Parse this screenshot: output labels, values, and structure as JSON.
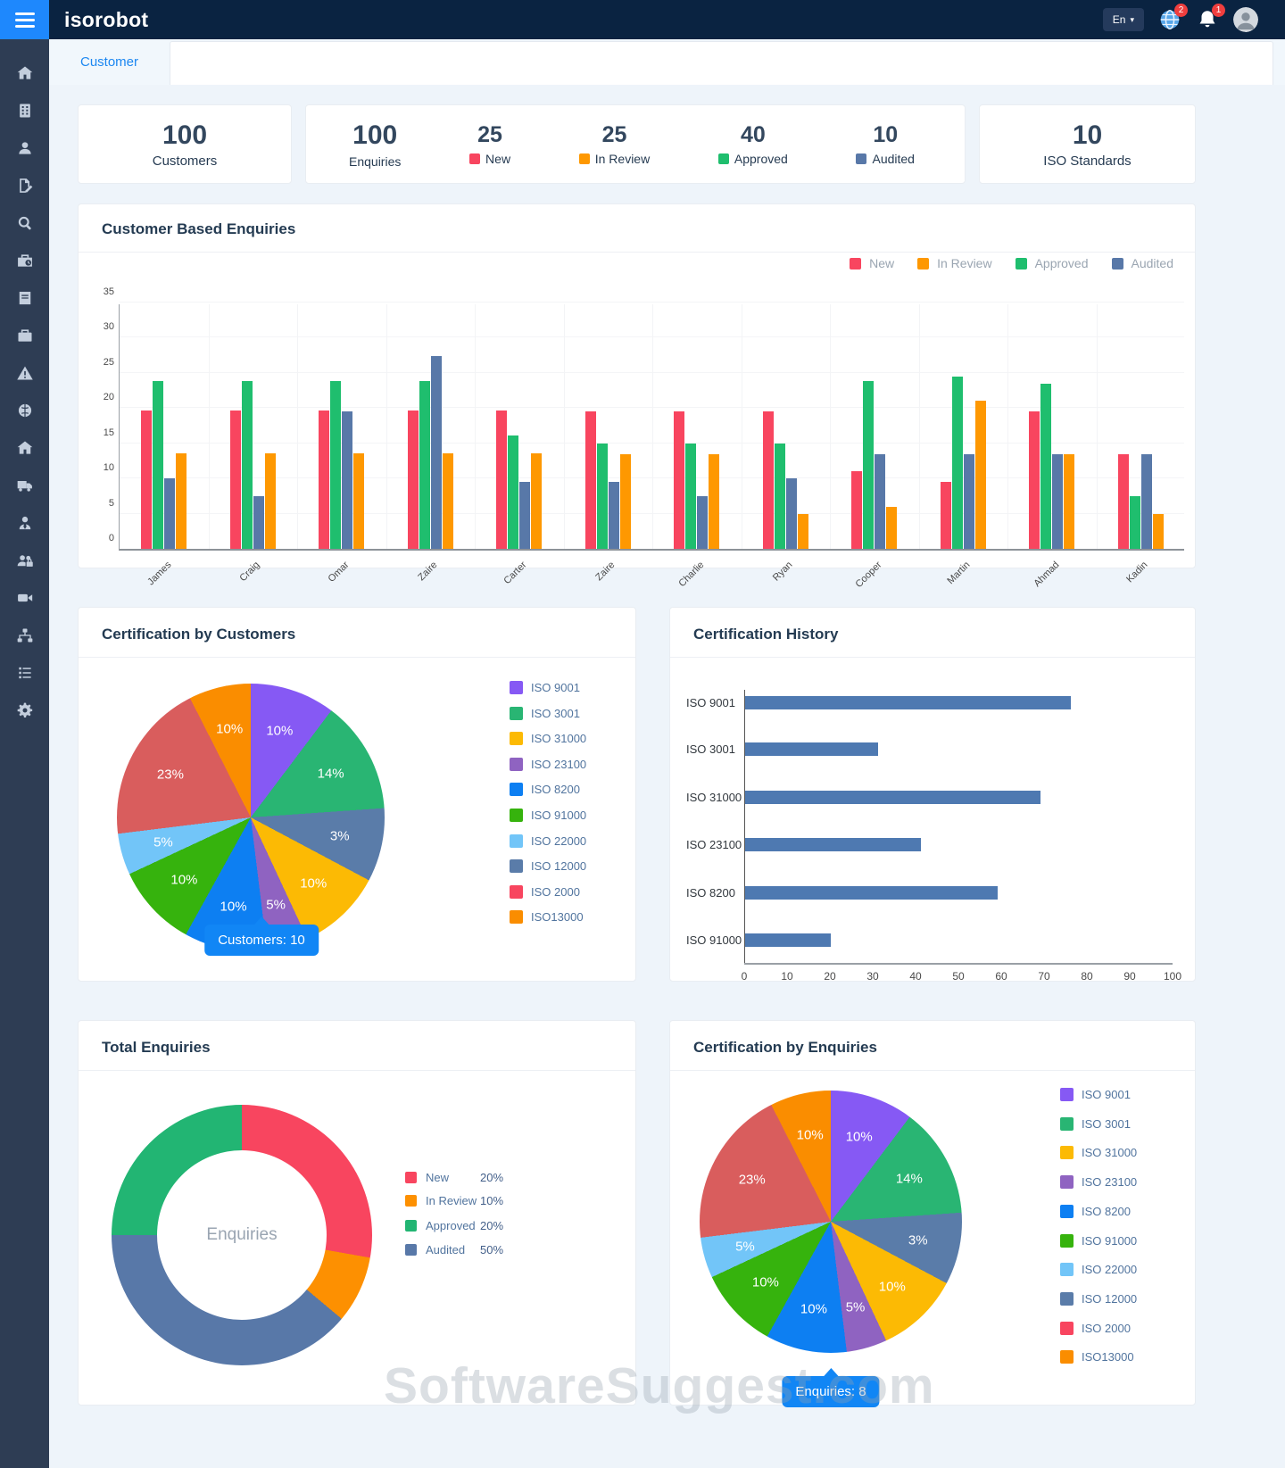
{
  "navbar": {
    "logo": "isorobot",
    "language": "En",
    "globe_badge": "2",
    "bell_badge": "1"
  },
  "tab": {
    "label": "Customer"
  },
  "sidebar": {
    "items": [
      {
        "icon": "home"
      },
      {
        "icon": "building"
      },
      {
        "icon": "user"
      },
      {
        "icon": "file-signature"
      },
      {
        "icon": "search"
      },
      {
        "icon": "briefcase-clock"
      },
      {
        "icon": "book"
      },
      {
        "icon": "briefcase"
      },
      {
        "icon": "warning-triangle"
      },
      {
        "icon": "brain"
      },
      {
        "icon": "home-alt"
      },
      {
        "icon": "truck"
      },
      {
        "icon": "user-tie"
      },
      {
        "icon": "users-lock"
      },
      {
        "icon": "video-camera"
      },
      {
        "icon": "sitemap"
      },
      {
        "icon": "task-list"
      },
      {
        "icon": "gear"
      }
    ]
  },
  "stats": {
    "customers": {
      "value": "100",
      "label": "Customers"
    },
    "enquiries": {
      "value": "100",
      "label": "Enquiries"
    },
    "iso": {
      "value": "10",
      "label": "ISO Standards"
    },
    "enquiry_breakdown": [
      {
        "value": "25",
        "label": "New",
        "color": "#f8455f"
      },
      {
        "value": "25",
        "label": "In Review",
        "color": "#fe9801"
      },
      {
        "value": "40",
        "label": "Approved",
        "color": "#1fbe6e"
      },
      {
        "value": "10",
        "label": "Audited",
        "color": "#5878a8"
      }
    ]
  },
  "chart_data": [
    {
      "id": "customer-based-enquiries",
      "type": "bar",
      "title": "Customer Based Enquiries",
      "categories": [
        "James",
        "Craig",
        "Omar",
        "Zaire",
        "Carter",
        "Zaire",
        "Charlie",
        "Ryan",
        "Cooper",
        "Martin",
        "Ahmad",
        "Kadin"
      ],
      "series": [
        {
          "name": "New",
          "color": "#f8455f",
          "values": [
            19.6,
            19.6,
            19.6,
            19.6,
            19.6,
            19.5,
            19.5,
            19.5,
            11,
            9.5,
            19.5,
            13.5
          ]
        },
        {
          "name": "Approved",
          "color": "#1fbe6e",
          "values": [
            23.8,
            23.8,
            23.8,
            23.8,
            16.1,
            15,
            15,
            15,
            23.8,
            24.5,
            23.5,
            7.5
          ]
        },
        {
          "name": "Audited",
          "color": "#5878a8",
          "values": [
            10,
            7.5,
            19.5,
            27.4,
            9.5,
            9.5,
            7.5,
            10,
            13.5,
            13.5,
            13.5,
            13.5
          ]
        },
        {
          "name": "In Review",
          "color": "#fe9801",
          "values": [
            13.6,
            13.6,
            13.6,
            13.6,
            13.6,
            13.5,
            13.5,
            5,
            6,
            21,
            13.5,
            5
          ]
        }
      ],
      "legend_order": [
        "New",
        "In Review",
        "Approved",
        "Audited"
      ],
      "ylim": [
        0,
        35
      ],
      "yticks": [
        0,
        5,
        10,
        15,
        20,
        25,
        30,
        35
      ],
      "grid": true,
      "legend_position": "top-right"
    },
    {
      "id": "certification-by-customers",
      "type": "pie",
      "title": "Certification by Customers",
      "segments": [
        {
          "label": "ISO 9001",
          "pct": "10%",
          "arc": 37,
          "color": "#8659f4"
        },
        {
          "label": "ISO 3001",
          "pct": "14%",
          "arc": 49,
          "color": "#29b573"
        },
        {
          "label": "ISO 12000",
          "pct": "3%",
          "arc": 32,
          "color": "#5a7ca9"
        },
        {
          "label": "ISO 31000",
          "pct": "10%",
          "arc": 37,
          "color": "#fcba04"
        },
        {
          "label": "ISO 23100",
          "pct": "5%",
          "arc": 18,
          "color": "#8f63c1"
        },
        {
          "label": "ISO 8200",
          "pct": "10%",
          "arc": 36,
          "color": "#0d7ff2"
        },
        {
          "label": "ISO 91000",
          "pct": "10%",
          "arc": 36,
          "color": "#36b30d"
        },
        {
          "label": "ISO 22000",
          "pct": "5%",
          "arc": 18,
          "color": "#72c5f8"
        },
        {
          "label": "ISO 2000",
          "pct": "23%",
          "arc": 70,
          "color": "#d95d5d",
          "legend_color": "#f8455f"
        },
        {
          "label": "ISO13000",
          "pct": "10%",
          "arc": 27,
          "color": "#fa8d00"
        }
      ],
      "legend": [
        "ISO 9001",
        "ISO 3001",
        "ISO 31000",
        "ISO 23100",
        "ISO 8200",
        "ISO 91000",
        "ISO 22000",
        "ISO 12000",
        "ISO 2000",
        "ISO13000"
      ],
      "tooltip": "Customers: 10"
    },
    {
      "id": "certification-history",
      "type": "hbar",
      "title": "Certification History",
      "categories": [
        "ISO 9001",
        "ISO 3001",
        "ISO 31000",
        "ISO 23100",
        "ISO 8200",
        "ISO 91000"
      ],
      "values": [
        76,
        31,
        69,
        41,
        59,
        20
      ],
      "color": "#4e79b1",
      "xlim": [
        0,
        100
      ],
      "xticks": [
        0,
        10,
        20,
        30,
        40,
        50,
        60,
        70,
        80,
        90,
        100
      ]
    },
    {
      "id": "total-enquiries",
      "type": "donut",
      "title": "Total Enquiries",
      "center_label": "Enquiries",
      "segments": [
        {
          "label": "New",
          "pct": "20%",
          "arc": 100,
          "color": "#f8455f"
        },
        {
          "label": "In Review",
          "pct": "10%",
          "arc": 30,
          "color": "#fd9001"
        },
        {
          "label": "Audited",
          "pct": "50%",
          "arc": 140,
          "color": "#5878a8"
        },
        {
          "label": "Approved",
          "pct": "20%",
          "arc": 90,
          "color": "#22b573"
        }
      ],
      "legend": [
        {
          "label": "New",
          "value": "20%"
        },
        {
          "label": "In Review",
          "value": "10%"
        },
        {
          "label": "Approved",
          "value": "20%"
        },
        {
          "label": "Audited",
          "value": "50%"
        }
      ]
    },
    {
      "id": "certification-by-enquiries",
      "type": "pie",
      "title": "Certification by Enquiries",
      "segments": [
        {
          "label": "ISO 9001",
          "pct": "10%",
          "arc": 37,
          "color": "#8659f4"
        },
        {
          "label": "ISO 3001",
          "pct": "14%",
          "arc": 49,
          "color": "#29b573"
        },
        {
          "label": "ISO 12000",
          "pct": "3%",
          "arc": 32,
          "color": "#5a7ca9"
        },
        {
          "label": "ISO 31000",
          "pct": "10%",
          "arc": 37,
          "color": "#fcba04"
        },
        {
          "label": "ISO 23100",
          "pct": "5%",
          "arc": 18,
          "color": "#8f63c1"
        },
        {
          "label": "ISO 8200",
          "pct": "10%",
          "arc": 36,
          "color": "#0d7ff2"
        },
        {
          "label": "ISO 91000",
          "pct": "10%",
          "arc": 36,
          "color": "#36b30d"
        },
        {
          "label": "ISO 22000",
          "pct": "5%",
          "arc": 18,
          "color": "#72c5f8"
        },
        {
          "label": "ISO 2000",
          "pct": "23%",
          "arc": 70,
          "color": "#d95d5d",
          "legend_color": "#f8455f"
        },
        {
          "label": "ISO13000",
          "pct": "10%",
          "arc": 27,
          "color": "#fa8d00"
        }
      ],
      "legend": [
        "ISO 9001",
        "ISO 3001",
        "ISO 31000",
        "ISO 23100",
        "ISO 8200",
        "ISO 91000",
        "ISO 22000",
        "ISO 12000",
        "ISO 2000",
        "ISO13000"
      ],
      "tooltip": "Enquiries: 8"
    }
  ],
  "watermark": "SoftwareSuggest.com"
}
